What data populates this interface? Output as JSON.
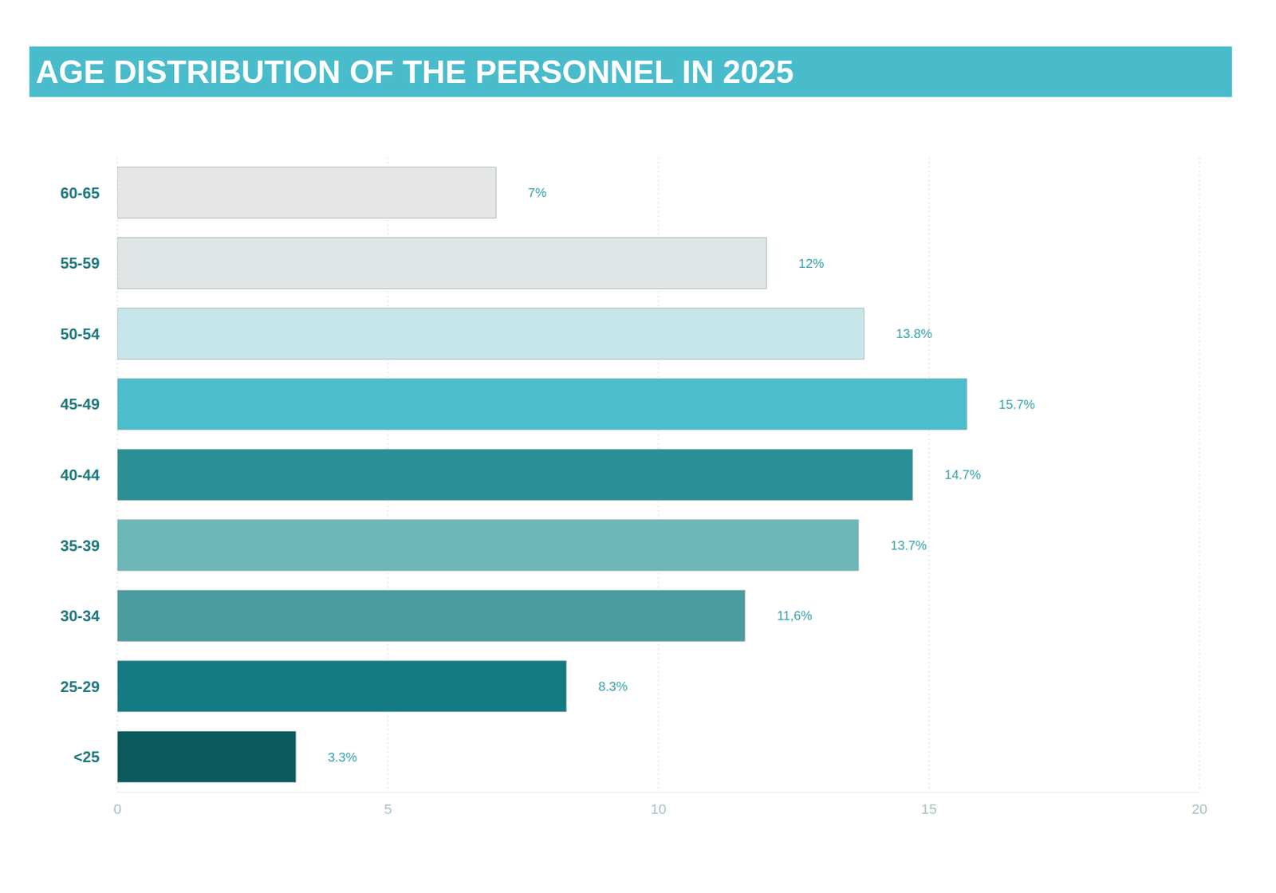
{
  "chart_data": {
    "type": "bar",
    "title": "AGE DISTRIBUTION OF THE PERSONNEL IN 2025",
    "orientation": "horizontal",
    "categories": [
      "60-65",
      "55-59",
      "50-54",
      "45-49",
      "40-44",
      "35-39",
      "30-34",
      "25-29",
      "<25"
    ],
    "values": [
      7,
      12,
      13.8,
      15.7,
      14.7,
      13.7,
      11.6,
      8.3,
      3.3
    ],
    "value_labels": [
      "7%",
      "12%",
      "13.8%",
      "15.7%",
      "14.7%",
      "13.7%",
      "11,6%",
      "8.3%",
      "3.3%"
    ],
    "colors": [
      "#e6e6e6",
      "#dfe4e4",
      "#c6e6e9",
      "#4bbdcc",
      "#2b8f96",
      "#6db7b8",
      "#4a9c9e",
      "#137b81",
      "#0d5a5e"
    ],
    "xlim": [
      0,
      20
    ],
    "xticks": [
      0,
      5,
      10,
      15,
      20
    ],
    "grid": true,
    "data_labels": true
  }
}
